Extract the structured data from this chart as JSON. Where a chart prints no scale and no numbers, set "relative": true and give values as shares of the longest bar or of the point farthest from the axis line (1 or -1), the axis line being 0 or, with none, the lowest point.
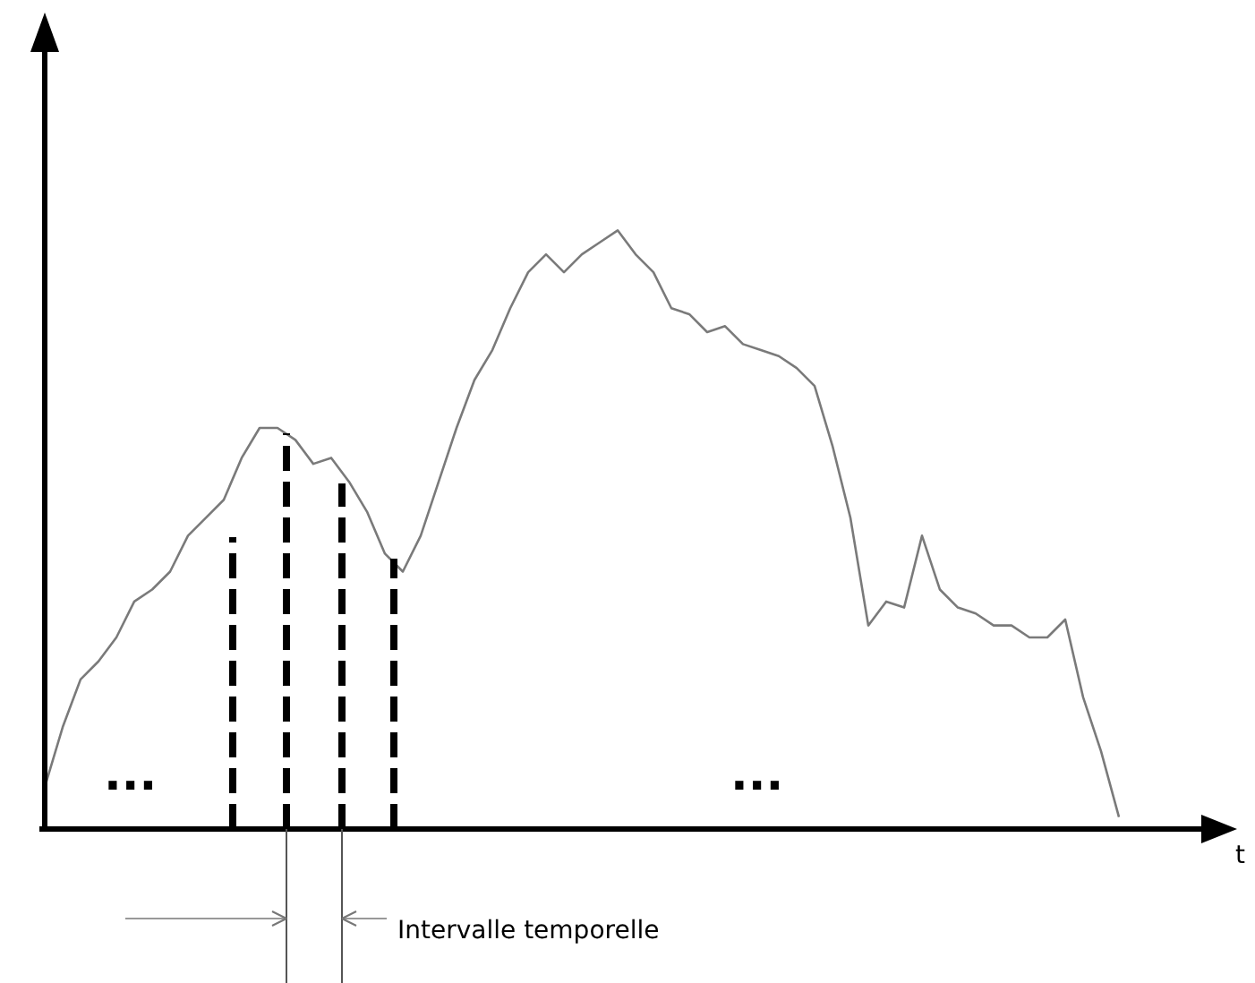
{
  "chart_data": {
    "type": "line",
    "relative": true,
    "xlabel": "t",
    "tick_labels": false,
    "marker": "none",
    "line_style": "solid",
    "categories": [
      null,
      null,
      null,
      null,
      null,
      null,
      null,
      null,
      null,
      null,
      null,
      null,
      null,
      null,
      null,
      null,
      null,
      null,
      null,
      null,
      null,
      null,
      null,
      null,
      null,
      null,
      null,
      null,
      null,
      null,
      null,
      null,
      null,
      null,
      null,
      null,
      null,
      null,
      null,
      null,
      null,
      null,
      null,
      null,
      null,
      null,
      null,
      null,
      null,
      null,
      null,
      null,
      null,
      null,
      null,
      null,
      null,
      null,
      null,
      null,
      null,
      null,
      null,
      null,
      null,
      null,
      null
    ],
    "series": [
      {
        "color": "#7a7a7a",
        "values": [
          0.07,
          0.17,
          0.25,
          0.28,
          0.32,
          0.38,
          0.4,
          0.43,
          0.49,
          0.52,
          0.55,
          0.62,
          0.67,
          0.67,
          0.65,
          0.61,
          0.62,
          0.58,
          0.53,
          0.46,
          0.43,
          0.49,
          0.58,
          0.67,
          0.75,
          0.8,
          0.87,
          0.93,
          0.96,
          0.93,
          0.96,
          0.98,
          1,
          0.96,
          0.93,
          0.87,
          0.86,
          0.83,
          0.84,
          0.81,
          0.8,
          0.79,
          0.77,
          0.74,
          0.64,
          0.52,
          0.34,
          0.38,
          0.37,
          0.49,
          0.4,
          0.37,
          0.36,
          0.34,
          0.34,
          0.32,
          0.32,
          0.35,
          0.22,
          0.13,
          0.02,
          null,
          null,
          null,
          null,
          null,
          null
        ]
      }
    ],
    "annotations": [
      "...",
      "...",
      "Intervalle temporelle"
    ]
  }
}
